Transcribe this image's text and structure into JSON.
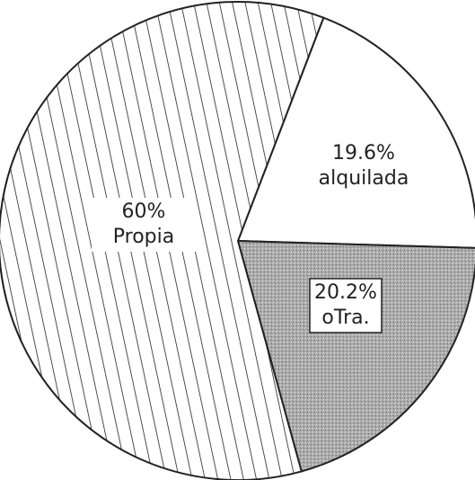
{
  "chart_data": {
    "type": "pie",
    "categories": [
      "alquilada",
      "oTra.",
      "Propia"
    ],
    "values": [
      19.6,
      20.2,
      60
    ],
    "value_labels": [
      "19.6%",
      "20.2%",
      "60%"
    ]
  }
}
